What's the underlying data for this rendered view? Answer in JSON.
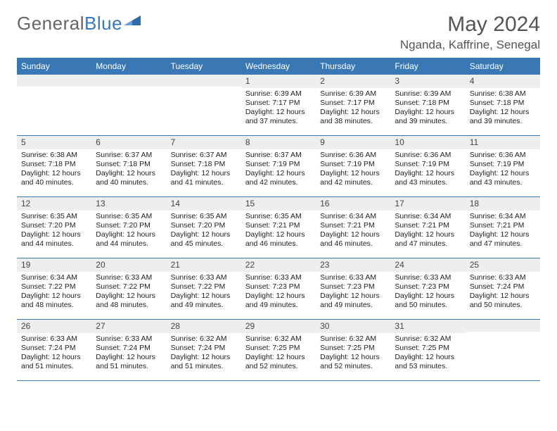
{
  "brand": {
    "part1": "General",
    "part2": "Blue",
    "tri_color": "#2f6aa8"
  },
  "title": "May 2024",
  "location": "Nganda, Kaffrine, Senegal",
  "colors": {
    "header_bar": "#3a78b5",
    "day_num_bg": "#eceef0",
    "text": "#444444",
    "rule": "#3a78b5"
  },
  "fonts": {
    "title_size": 30,
    "location_size": 17,
    "dow_size": 12,
    "body_size": 10.5
  },
  "dow": [
    "Sunday",
    "Monday",
    "Tuesday",
    "Wednesday",
    "Thursday",
    "Friday",
    "Saturday"
  ],
  "weeks": [
    [
      null,
      null,
      null,
      {
        "n": "1",
        "sr": "6:39 AM",
        "ss": "7:17 PM",
        "dl": "12 hours and 37 minutes."
      },
      {
        "n": "2",
        "sr": "6:39 AM",
        "ss": "7:17 PM",
        "dl": "12 hours and 38 minutes."
      },
      {
        "n": "3",
        "sr": "6:39 AM",
        "ss": "7:18 PM",
        "dl": "12 hours and 39 minutes."
      },
      {
        "n": "4",
        "sr": "6:38 AM",
        "ss": "7:18 PM",
        "dl": "12 hours and 39 minutes."
      }
    ],
    [
      {
        "n": "5",
        "sr": "6:38 AM",
        "ss": "7:18 PM",
        "dl": "12 hours and 40 minutes."
      },
      {
        "n": "6",
        "sr": "6:37 AM",
        "ss": "7:18 PM",
        "dl": "12 hours and 40 minutes."
      },
      {
        "n": "7",
        "sr": "6:37 AM",
        "ss": "7:18 PM",
        "dl": "12 hours and 41 minutes."
      },
      {
        "n": "8",
        "sr": "6:37 AM",
        "ss": "7:19 PM",
        "dl": "12 hours and 42 minutes."
      },
      {
        "n": "9",
        "sr": "6:36 AM",
        "ss": "7:19 PM",
        "dl": "12 hours and 42 minutes."
      },
      {
        "n": "10",
        "sr": "6:36 AM",
        "ss": "7:19 PM",
        "dl": "12 hours and 43 minutes."
      },
      {
        "n": "11",
        "sr": "6:36 AM",
        "ss": "7:19 PM",
        "dl": "12 hours and 43 minutes."
      }
    ],
    [
      {
        "n": "12",
        "sr": "6:35 AM",
        "ss": "7:20 PM",
        "dl": "12 hours and 44 minutes."
      },
      {
        "n": "13",
        "sr": "6:35 AM",
        "ss": "7:20 PM",
        "dl": "12 hours and 44 minutes."
      },
      {
        "n": "14",
        "sr": "6:35 AM",
        "ss": "7:20 PM",
        "dl": "12 hours and 45 minutes."
      },
      {
        "n": "15",
        "sr": "6:35 AM",
        "ss": "7:21 PM",
        "dl": "12 hours and 46 minutes."
      },
      {
        "n": "16",
        "sr": "6:34 AM",
        "ss": "7:21 PM",
        "dl": "12 hours and 46 minutes."
      },
      {
        "n": "17",
        "sr": "6:34 AM",
        "ss": "7:21 PM",
        "dl": "12 hours and 47 minutes."
      },
      {
        "n": "18",
        "sr": "6:34 AM",
        "ss": "7:21 PM",
        "dl": "12 hours and 47 minutes."
      }
    ],
    [
      {
        "n": "19",
        "sr": "6:34 AM",
        "ss": "7:22 PM",
        "dl": "12 hours and 48 minutes."
      },
      {
        "n": "20",
        "sr": "6:33 AM",
        "ss": "7:22 PM",
        "dl": "12 hours and 48 minutes."
      },
      {
        "n": "21",
        "sr": "6:33 AM",
        "ss": "7:22 PM",
        "dl": "12 hours and 49 minutes."
      },
      {
        "n": "22",
        "sr": "6:33 AM",
        "ss": "7:23 PM",
        "dl": "12 hours and 49 minutes."
      },
      {
        "n": "23",
        "sr": "6:33 AM",
        "ss": "7:23 PM",
        "dl": "12 hours and 49 minutes."
      },
      {
        "n": "24",
        "sr": "6:33 AM",
        "ss": "7:23 PM",
        "dl": "12 hours and 50 minutes."
      },
      {
        "n": "25",
        "sr": "6:33 AM",
        "ss": "7:24 PM",
        "dl": "12 hours and 50 minutes."
      }
    ],
    [
      {
        "n": "26",
        "sr": "6:33 AM",
        "ss": "7:24 PM",
        "dl": "12 hours and 51 minutes."
      },
      {
        "n": "27",
        "sr": "6:33 AM",
        "ss": "7:24 PM",
        "dl": "12 hours and 51 minutes."
      },
      {
        "n": "28",
        "sr": "6:32 AM",
        "ss": "7:24 PM",
        "dl": "12 hours and 51 minutes."
      },
      {
        "n": "29",
        "sr": "6:32 AM",
        "ss": "7:25 PM",
        "dl": "12 hours and 52 minutes."
      },
      {
        "n": "30",
        "sr": "6:32 AM",
        "ss": "7:25 PM",
        "dl": "12 hours and 52 minutes."
      },
      {
        "n": "31",
        "sr": "6:32 AM",
        "ss": "7:25 PM",
        "dl": "12 hours and 53 minutes."
      },
      null
    ]
  ],
  "labels": {
    "sunrise": "Sunrise: ",
    "sunset": "Sunset: ",
    "daylight": "Daylight: "
  }
}
